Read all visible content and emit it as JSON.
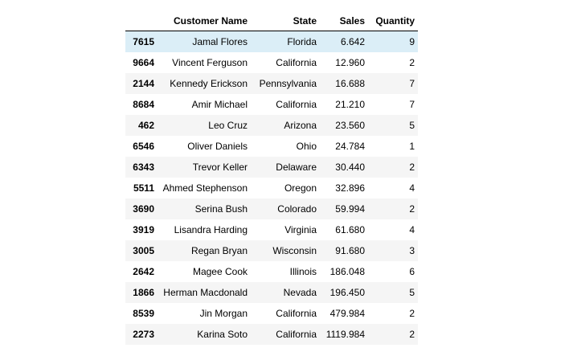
{
  "table": {
    "columns": [
      "Customer Name",
      "State",
      "Sales",
      "Quantity"
    ],
    "rows": [
      {
        "index": "7615",
        "customer_name": "Jamal Flores",
        "state": "Florida",
        "sales": "6.642",
        "quantity": "9"
      },
      {
        "index": "9664",
        "customer_name": "Vincent Ferguson",
        "state": "California",
        "sales": "12.960",
        "quantity": "2"
      },
      {
        "index": "2144",
        "customer_name": "Kennedy Erickson",
        "state": "Pennsylvania",
        "sales": "16.688",
        "quantity": "7"
      },
      {
        "index": "8684",
        "customer_name": "Amir Michael",
        "state": "California",
        "sales": "21.210",
        "quantity": "7"
      },
      {
        "index": "462",
        "customer_name": "Leo Cruz",
        "state": "Arizona",
        "sales": "23.560",
        "quantity": "5"
      },
      {
        "index": "6546",
        "customer_name": "Oliver Daniels",
        "state": "Ohio",
        "sales": "24.784",
        "quantity": "1"
      },
      {
        "index": "6343",
        "customer_name": "Trevor Keller",
        "state": "Delaware",
        "sales": "30.440",
        "quantity": "2"
      },
      {
        "index": "5511",
        "customer_name": "Ahmed Stephenson",
        "state": "Oregon",
        "sales": "32.896",
        "quantity": "4"
      },
      {
        "index": "3690",
        "customer_name": "Serina Bush",
        "state": "Colorado",
        "sales": "59.994",
        "quantity": "2"
      },
      {
        "index": "3919",
        "customer_name": "Lisandra Harding",
        "state": "Virginia",
        "sales": "61.680",
        "quantity": "4"
      },
      {
        "index": "3005",
        "customer_name": "Regan Bryan",
        "state": "Wisconsin",
        "sales": "91.680",
        "quantity": "3"
      },
      {
        "index": "2642",
        "customer_name": "Magee Cook",
        "state": "Illinois",
        "sales": "186.048",
        "quantity": "6"
      },
      {
        "index": "1866",
        "customer_name": "Herman Macdonald",
        "state": "Nevada",
        "sales": "196.450",
        "quantity": "5"
      },
      {
        "index": "8539",
        "customer_name": "Jin Morgan",
        "state": "California",
        "sales": "479.984",
        "quantity": "2"
      },
      {
        "index": "2273",
        "customer_name": "Karina Soto",
        "state": "California",
        "sales": "1119.984",
        "quantity": "2"
      }
    ]
  },
  "colors": {
    "hover_row": "#dbeef7",
    "stripe_row": "#f5f5f5"
  }
}
